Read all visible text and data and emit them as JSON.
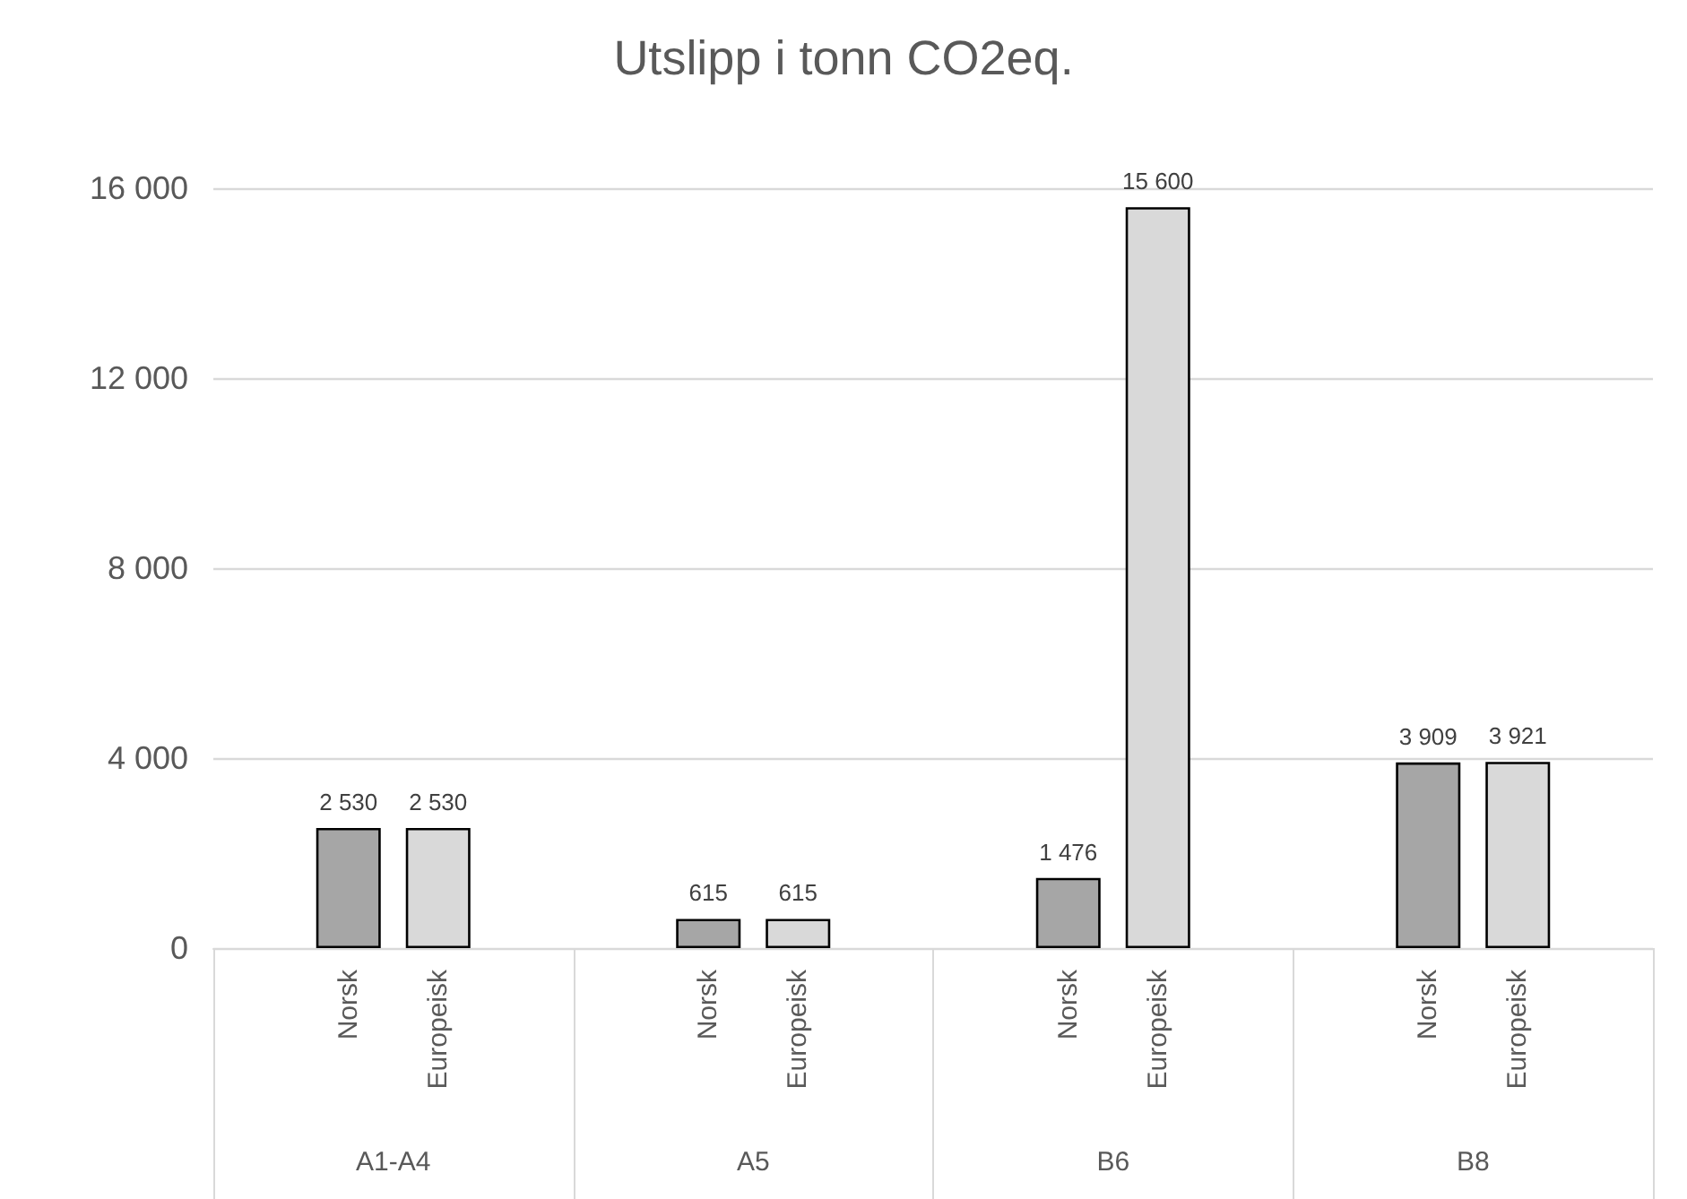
{
  "chart_data": {
    "type": "bar",
    "title": "Utslipp i tonn CO2eq.",
    "categories": [
      "A1-A4",
      "A5",
      "B6",
      "B8"
    ],
    "series": [
      {
        "name": "Norsk",
        "color": "#a6a6a6",
        "values": [
          2530,
          615,
          1476,
          3909
        ],
        "value_labels": [
          "2 530",
          "615",
          "1 476",
          "3 909"
        ]
      },
      {
        "name": "Europeisk",
        "color": "#d9d9d9",
        "values": [
          2530,
          615,
          15600,
          3921
        ],
        "value_labels": [
          "2 530",
          "615",
          "15 600",
          "3 921"
        ]
      }
    ],
    "ylim": [
      0,
      16000
    ],
    "yticks": [
      0,
      {
        "value": 4000,
        "label": "4 000"
      },
      {
        "value": 8000,
        "label": "8 000"
      },
      {
        "value": 12000,
        "label": "12 000"
      },
      {
        "value": 16000,
        "label": "16 000"
      }
    ],
    "grid": "y",
    "legend": false
  }
}
